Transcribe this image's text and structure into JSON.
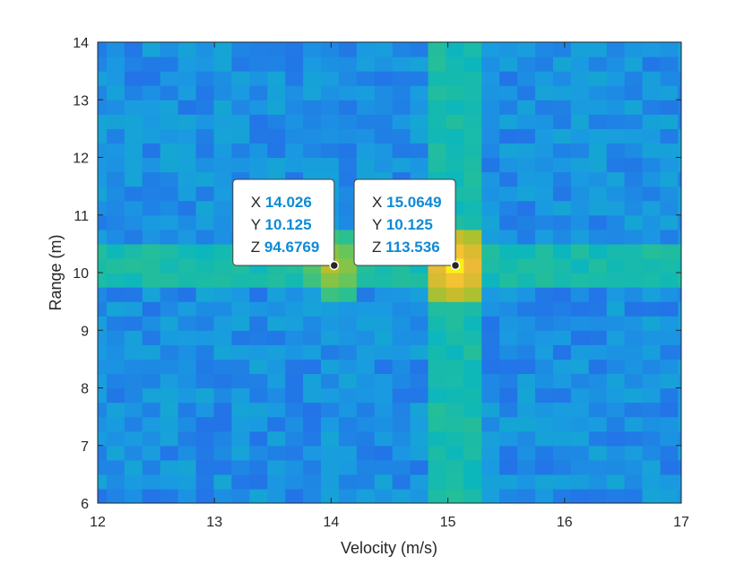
{
  "chart_data": {
    "type": "heatmap",
    "xlabel": "Velocity (m/s)",
    "ylabel": "Range (m)",
    "xlim": [
      12,
      17
    ],
    "ylim": [
      6,
      14
    ],
    "x_ticks": [
      "12",
      "13",
      "14",
      "15",
      "16",
      "17"
    ],
    "y_ticks": [
      "6",
      "7",
      "8",
      "9",
      "10",
      "11",
      "12",
      "13",
      "14"
    ],
    "colormap": "parula",
    "background_level": 45,
    "peaks": [
      {
        "x": 14.026,
        "y": 10.125,
        "z": 94.6769
      },
      {
        "x": 15.0649,
        "y": 10.125,
        "z": 113.536
      }
    ],
    "datatips": [
      {
        "x_key": "X",
        "x_val": "14.026",
        "y_key": "Y",
        "y_val": "10.125",
        "z_key": "Z",
        "z_val": "94.6769"
      },
      {
        "x_key": "X",
        "x_val": "15.0649",
        "y_key": "Y",
        "y_val": "10.125",
        "z_key": "Z",
        "z_val": "113.536"
      }
    ],
    "grid": false
  }
}
